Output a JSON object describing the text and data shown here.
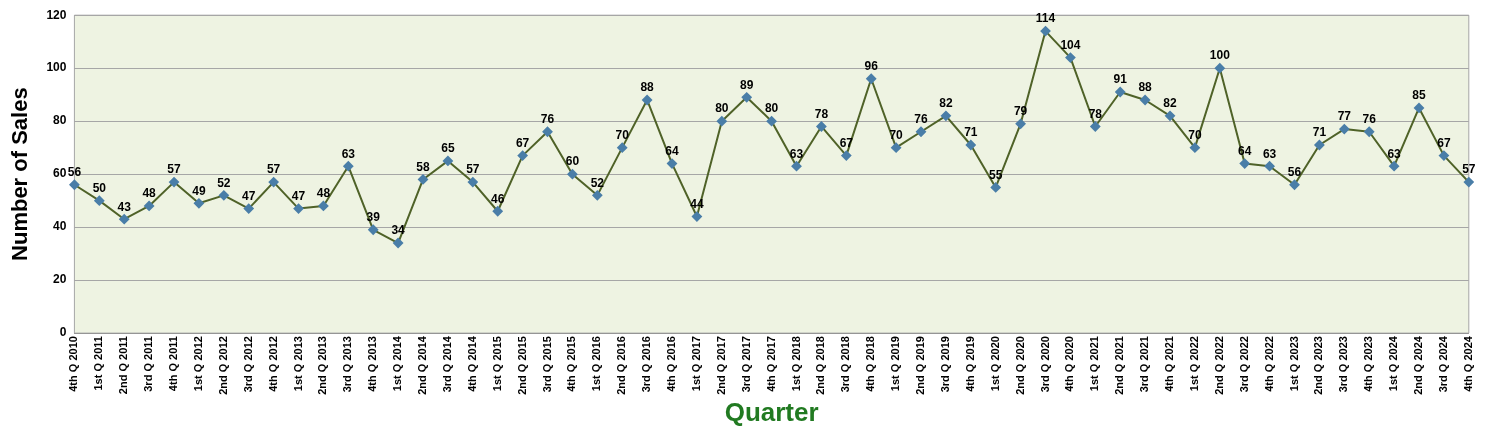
{
  "chart_data": {
    "type": "line",
    "xlabel": "Quarter",
    "ylabel": "Number of Sales",
    "categories": [
      "4th Q 2010",
      "1st Q 2011",
      "2nd Q 2011",
      "3rd Q 2011",
      "4th Q 2011",
      "1st Q 2012",
      "2nd Q 2012",
      "3rd Q 2012",
      "4th Q 2012",
      "1st Q 2013",
      "2nd Q 2013",
      "3rd Q 2013",
      "4th Q 2013",
      "1st Q 2014",
      "2nd Q 2014",
      "3rd Q 2014",
      "4th Q 2014",
      "1st Q 2015",
      "2nd Q 2015",
      "3rd Q 2015",
      "4th Q 2015",
      "1st Q 2016",
      "2nd Q 2016",
      "3rd Q 2016",
      "4th Q 2016",
      "1st Q 2017",
      "2nd Q 2017",
      "3rd Q 2017",
      "4th Q 2017",
      "1st Q 2018",
      "2nd Q 2018",
      "3rd Q 2018",
      "4th Q 2018",
      "1st Q 2019",
      "2nd Q 2019",
      "3rd Q 2019",
      "4th Q 2019",
      "1st Q 2020",
      "2nd Q 2020",
      "3rd Q 2020",
      "4th Q 2020",
      "1st Q 2021",
      "2nd Q 2021",
      "3rd Q 2021",
      "4th Q 2021",
      "1st Q 2022",
      "2nd Q 2022",
      "3rd Q 2022",
      "4th Q 2022",
      "1st Q 2023",
      "2nd Q 2023",
      "3rd Q 2023",
      "4th Q 2023",
      "1st Q 2024",
      "2nd Q 2024",
      "3rd Q 2024",
      "4th Q 2024"
    ],
    "series": [
      {
        "color": "#4f6228",
        "values": [
          56,
          50,
          43,
          48,
          57,
          49,
          52,
          47,
          57,
          47,
          48,
          63,
          39,
          34,
          58,
          65,
          57,
          46,
          67,
          76,
          60,
          52,
          70,
          88,
          64,
          44,
          80,
          89,
          80,
          63,
          78,
          67,
          96,
          70,
          76,
          82,
          71,
          55,
          79,
          114,
          104,
          78,
          91,
          88,
          82,
          70,
          100,
          64,
          63,
          56,
          71,
          77,
          76,
          63,
          85,
          67,
          57
        ]
      }
    ],
    "ylim": [
      0,
      120
    ],
    "yticks": [
      0,
      20,
      40,
      60,
      80,
      100,
      120
    ],
    "grid": "y",
    "legend": false,
    "marker": "diamond",
    "line_style": "solid",
    "data_labels": true
  }
}
